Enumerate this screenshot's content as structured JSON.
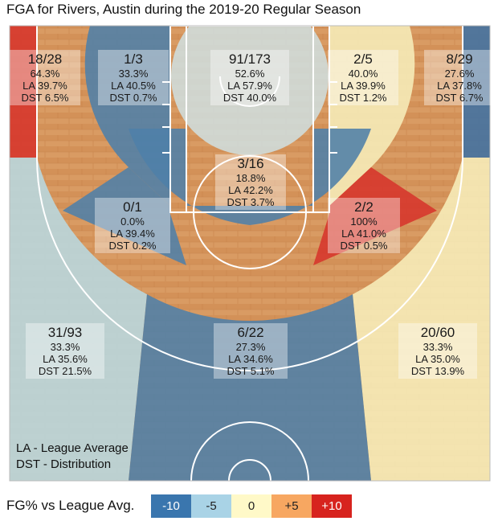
{
  "title": "FGA for Rivers, Austin during the 2019-20 Regular Season",
  "legend": {
    "label": "FG% vs League Avg.",
    "items": [
      {
        "text": "-10",
        "color": "#3a76ae",
        "text_color": "#ffffff"
      },
      {
        "text": "-5",
        "color": "#a9d3e6",
        "text_color": "#222222"
      },
      {
        "text": "0",
        "color": "#fff9c8",
        "text_color": "#222222"
      },
      {
        "text": "+5",
        "color": "#f7a761",
        "text_color": "#222222"
      },
      {
        "text": "+10",
        "color": "#d7231e",
        "text_color": "#ffffff"
      }
    ]
  },
  "notes": [
    "LA - League Average",
    "DST - Distribution"
  ],
  "zone_colors": {
    "left_corner": "#d6342b",
    "right_corner": "#3f71a3",
    "left_wing3": "#b8d8e0",
    "right_wing3": "#f7eebb",
    "top_key3": "#4f7fa8",
    "restricted": "#cfe3e6",
    "paint_nonra": "#4f7fa8",
    "left_mid_upper": "#4f7fa8",
    "left_mid_lower": "#4f7fa8",
    "center_mid": "#c9e0e4",
    "right_mid_upper": "#f6edb9",
    "right_mid_lower": "#d6342b",
    "wood": "#d99b63"
  },
  "chart_data": {
    "type": "shot_chart",
    "player": "Rivers, Austin",
    "season": "2019-20 Regular Season",
    "zones": [
      {
        "id": "left_corner_3",
        "made_attempted": "18/28",
        "fg_pct": "64.3%",
        "league_avg": "LA 39.7%",
        "distribution": "DST 6.5%"
      },
      {
        "id": "left_mid_upper",
        "made_attempted": "1/3",
        "fg_pct": "33.3%",
        "league_avg": "LA 40.5%",
        "distribution": "DST 0.7%"
      },
      {
        "id": "restricted_area",
        "made_attempted": "91/173",
        "fg_pct": "52.6%",
        "league_avg": "LA 57.9%",
        "distribution": "DST 40.0%"
      },
      {
        "id": "right_mid_upper",
        "made_attempted": "2/5",
        "fg_pct": "40.0%",
        "league_avg": "LA 39.9%",
        "distribution": "DST 1.2%"
      },
      {
        "id": "right_corner_3",
        "made_attempted": "8/29",
        "fg_pct": "27.6%",
        "league_avg": "LA 37.8%",
        "distribution": "DST 6.7%"
      },
      {
        "id": "paint_non_ra",
        "made_attempted": "3/16",
        "fg_pct": "18.8%",
        "league_avg": "LA 42.2%",
        "distribution": "DST 3.7%"
      },
      {
        "id": "left_mid_lower",
        "made_attempted": "0/1",
        "fg_pct": "0.0%",
        "league_avg": "LA 39.4%",
        "distribution": "DST 0.2%"
      },
      {
        "id": "right_mid_lower",
        "made_attempted": "2/2",
        "fg_pct": "100%",
        "league_avg": "LA 41.0%",
        "distribution": "DST 0.5%"
      },
      {
        "id": "left_wing_3",
        "made_attempted": "31/93",
        "fg_pct": "33.3%",
        "league_avg": "LA 35.6%",
        "distribution": "DST 21.5%"
      },
      {
        "id": "top_key_3",
        "made_attempted": "6/22",
        "fg_pct": "27.3%",
        "league_avg": "LA 34.6%",
        "distribution": "DST 5.1%"
      },
      {
        "id": "right_wing_3",
        "made_attempted": "20/60",
        "fg_pct": "33.3%",
        "league_avg": "LA 35.0%",
        "distribution": "DST 13.9%"
      }
    ]
  }
}
